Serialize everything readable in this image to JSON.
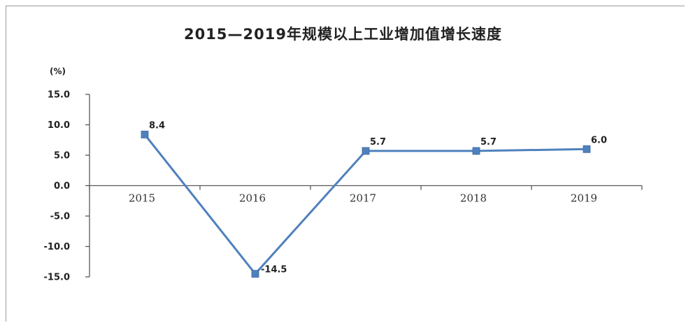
{
  "chart_data": {
    "type": "line",
    "title": "2015—2019年规模以上工业增加值增长速度",
    "unit": "(%)",
    "categories": [
      "2015",
      "2016",
      "2017",
      "2018",
      "2019"
    ],
    "series": [
      {
        "values": [
          8.4,
          -14.5,
          5.7,
          5.7,
          6.0
        ]
      }
    ],
    "data_labels": [
      "8.4",
      "-14.5",
      "5.7",
      "5.7",
      "6.0"
    ],
    "ylim": [
      -15.0,
      15.0
    ],
    "yticks": [
      "15.0",
      "10.0",
      "5.0",
      "0.0",
      "-5.0",
      "-10.0",
      "-15.0"
    ],
    "ytick_values": [
      15,
      10,
      5,
      0,
      -5,
      -10,
      -15
    ],
    "grid": false,
    "legend": "none",
    "colors": {
      "line": "#4f81bd",
      "marker": "#4f81bd",
      "axis": "#595959"
    }
  }
}
